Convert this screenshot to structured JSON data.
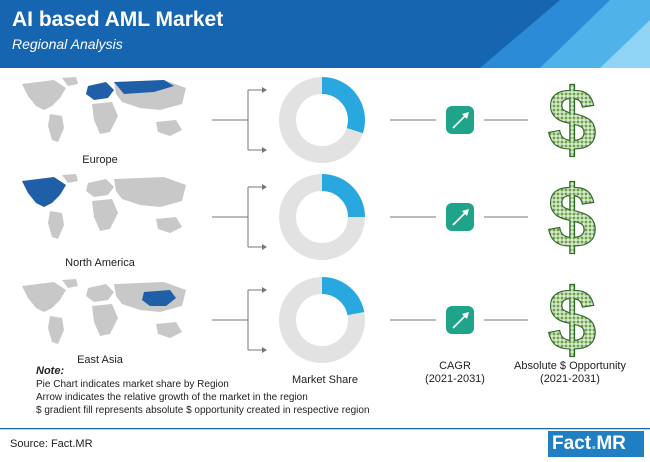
{
  "header": {
    "title": "AI based AML Market",
    "subtitle": "Regional Analysis"
  },
  "regions": [
    {
      "name": "Europe",
      "market_share_pct": 30
    },
    {
      "name": "North America",
      "market_share_pct": 25
    },
    {
      "name": "East Asia",
      "market_share_pct": 22
    }
  ],
  "columns": {
    "market_share": "Market Share",
    "cagr": "CAGR",
    "cagr_period": "(2021-2031)",
    "opportunity": "Absolute $ Opportunity",
    "opportunity_period": "(2021-2031)"
  },
  "note": {
    "title": "Note:",
    "lines": [
      "Pie Chart indicates market share by Region",
      "Arrow indicates the relative growth of the market in the region",
      "$ gradient fill represents absolute $ opportunity created in respective region"
    ]
  },
  "footer": {
    "source": "Source: Fact.MR",
    "logo_main": "Fact",
    "logo_dot": ".",
    "logo_suffix": "MR"
  },
  "colors": {
    "header": "#1565b0",
    "accent": "#29a8e0",
    "donut_bg": "#e2e2e2",
    "cagr_box": "#1fa38a",
    "dollar_fill": "#6fa54a",
    "map_base": "#c8c8c8",
    "map_highlight": "#1f5fa8"
  },
  "chart_data": {
    "type": "pie",
    "title": "",
    "categories": [
      "Europe",
      "North America",
      "East Asia"
    ],
    "values": [
      30,
      25,
      22
    ]
  }
}
